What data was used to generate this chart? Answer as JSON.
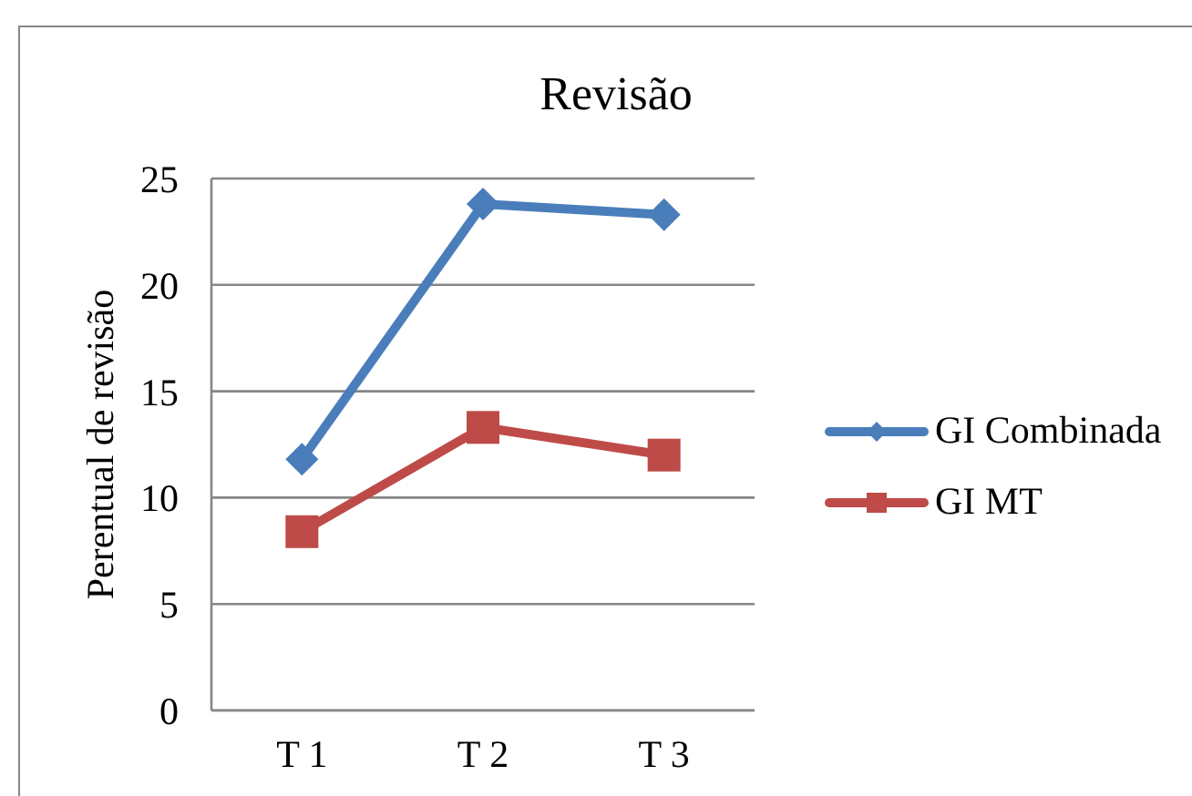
{
  "chart_data": {
    "type": "line",
    "title": "Revisão",
    "ylabel": "Perentual de revisão",
    "categories": [
      "T 1",
      "T 2",
      "T 3"
    ],
    "series": [
      {
        "name": "GI Combinada",
        "color": "#4a7ebb",
        "values": [
          11.8,
          23.8,
          23.3
        ],
        "marker": "diamond"
      },
      {
        "name": "GI MT",
        "color": "#be4b48",
        "values": [
          8.4,
          13.3,
          12.0
        ],
        "marker": "square"
      }
    ],
    "ylim": [
      0,
      25
    ],
    "yticks": [
      0,
      5,
      10,
      15,
      20,
      25
    ],
    "grid": "y",
    "legend": "right",
    "line_style": "solid"
  }
}
